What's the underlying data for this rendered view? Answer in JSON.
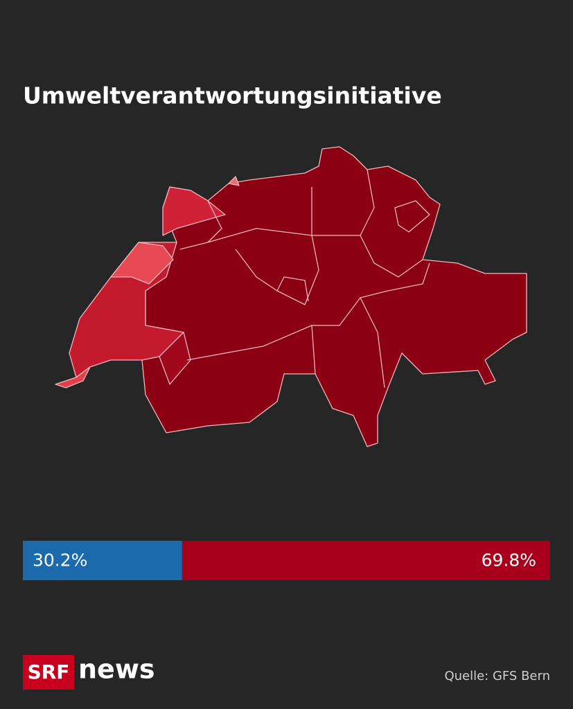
{
  "title": "Umweltverantwortungsinitiative",
  "result": {
    "values": [
      30.2,
      69.8
    ],
    "value_labels": [
      "30.2%",
      "69.8%"
    ],
    "colors": [
      "#1b6aab",
      "#a8001c"
    ]
  },
  "logo": {
    "brand": "SRF",
    "product": "news"
  },
  "source": "Quelle: GFS Bern"
}
